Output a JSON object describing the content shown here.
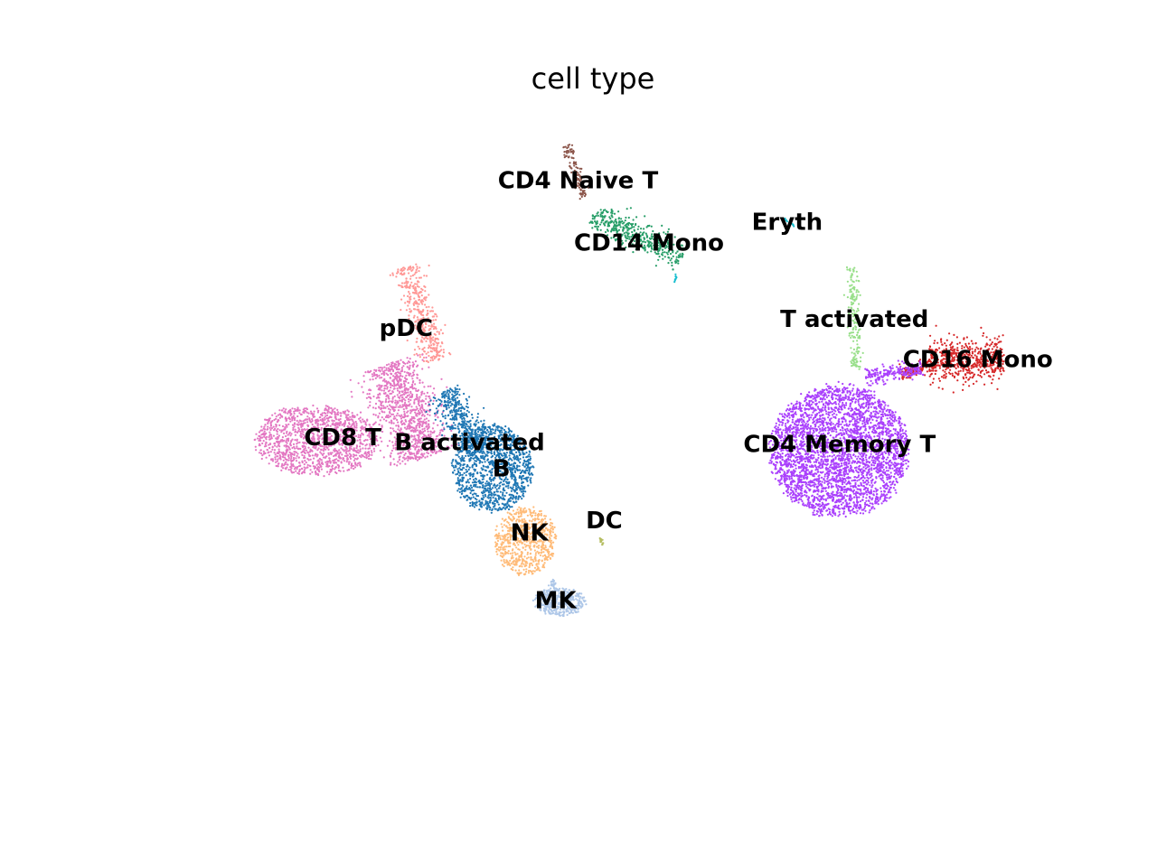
{
  "chart_data": {
    "type": "scatter",
    "title": "cell type",
    "xlabel": "",
    "ylabel": "",
    "grid": false,
    "axes_visible": false,
    "legend": "on-data",
    "xlim": [
      -8,
      16
    ],
    "ylim": [
      -6,
      13
    ],
    "clusters": [
      {
        "name": "CD4 Naive T",
        "color": "#8c564b",
        "label_x": 3.6,
        "label_y": 10.8,
        "n": 110,
        "shapes": [
          {
            "x1": 3.3,
            "y1": 11.8,
            "x2": 3.8,
            "y2": 10.3,
            "w": 0.15
          }
        ]
      },
      {
        "name": "CD14 Mono",
        "color": "#279e68",
        "label_x": 5.5,
        "label_y": 9.0,
        "n": 420,
        "shapes": [
          {
            "x1": 4.0,
            "y1": 9.8,
            "x2": 6.4,
            "y2": 8.6,
            "w": 0.38
          }
        ]
      },
      {
        "name": "Eryth",
        "color": "#17becf",
        "label_x": 9.2,
        "label_y": 9.6,
        "n": 20,
        "shapes": [
          {
            "x1": 9.1,
            "y1": 9.7,
            "x2": 9.4,
            "y2": 9.45,
            "w": 0.04
          },
          {
            "x1": 6.2,
            "y1": 8.1,
            "x2": 6.2,
            "y2": 7.85,
            "w": 0.04
          }
        ]
      },
      {
        "name": "T activated",
        "color": "#98df8a",
        "label_x": 11.0,
        "label_y": 6.8,
        "n": 180,
        "shapes": [
          {
            "x1": 10.95,
            "y1": 8.3,
            "x2": 11.05,
            "y2": 5.3,
            "w": 0.14
          }
        ]
      },
      {
        "name": "CD16 Mono",
        "color": "#d62728",
        "label_x": 14.3,
        "label_y": 5.65,
        "n": 650,
        "shapes": [
          {
            "x1": 13.0,
            "y1": 5.6,
            "x2": 15.0,
            "y2": 5.6,
            "w": 0.55
          },
          {
            "x1": 12.2,
            "y1": 5.2,
            "x2": 13.1,
            "y2": 5.5,
            "w": 0.18
          }
        ]
      },
      {
        "name": "CD4 Memory T",
        "color": "#aa40fc",
        "label_x": 10.6,
        "label_y": 3.2,
        "n": 3600,
        "shapes": [
          {
            "cx": 10.6,
            "cy": 3.0,
            "rx": 1.9,
            "ry": 1.95
          },
          {
            "x1": 11.3,
            "y1": 5.1,
            "x2": 12.8,
            "y2": 5.4,
            "w": 0.22
          }
        ]
      },
      {
        "name": "pDC",
        "color": "#ff9896",
        "label_x": -1.0,
        "label_y": 6.55,
        "n": 400,
        "shapes": [
          {
            "x1": -1.0,
            "y1": 8.3,
            "x2": -0.2,
            "y2": 5.6,
            "w": 0.35
          }
        ]
      },
      {
        "name": "CD8 T",
        "color": "#e377c2",
        "label_x": -2.7,
        "label_y": 3.4,
        "n": 2300,
        "shapes": [
          {
            "cx": -3.4,
            "cy": 3.3,
            "rx": 1.7,
            "ry": 1.05
          },
          {
            "x1": -1.5,
            "y1": 5.5,
            "x2": -0.5,
            "y2": 2.8,
            "w": 0.75
          }
        ]
      },
      {
        "name": "B activated",
        "color": "#1f77b4",
        "label_x": 0.7,
        "label_y": 3.25,
        "n": 1700,
        "shapes": [
          {
            "cx": 1.3,
            "cy": 2.5,
            "rx": 1.1,
            "ry": 1.3
          },
          {
            "x1": 0.0,
            "y1": 4.7,
            "x2": 1.0,
            "y2": 3.0,
            "w": 0.45
          }
        ]
      },
      {
        "name": "B",
        "color": "#1f77b4",
        "label_x": 1.55,
        "label_y": 2.5,
        "n": 0,
        "shapes": []
      },
      {
        "name": "NK",
        "color": "#ffbb78",
        "label_x": 2.3,
        "label_y": 0.65,
        "n": 700,
        "shapes": [
          {
            "cx": 2.2,
            "cy": 0.4,
            "rx": 0.85,
            "ry": 1.0
          }
        ]
      },
      {
        "name": "DC",
        "color": "#aec7e8",
        "label_x": 4.3,
        "label_y": 1.0,
        "n": 12,
        "shapes": [
          {
            "x1": 4.2,
            "y1": 0.5,
            "x2": 4.28,
            "y2": 0.25,
            "w": 0.04
          }
        ]
      },
      {
        "name": "MK",
        "color": "#aec7e8",
        "label_x": 3.0,
        "label_y": -1.3,
        "n": 420,
        "shapes": [
          {
            "cx": 3.1,
            "cy": -1.35,
            "rx": 0.72,
            "ry": 0.42
          },
          {
            "x1": 2.9,
            "y1": -0.7,
            "x2": 2.9,
            "y2": -0.9,
            "w": 0.1
          }
        ]
      }
    ],
    "dc_point_color": "#b5bd61"
  }
}
